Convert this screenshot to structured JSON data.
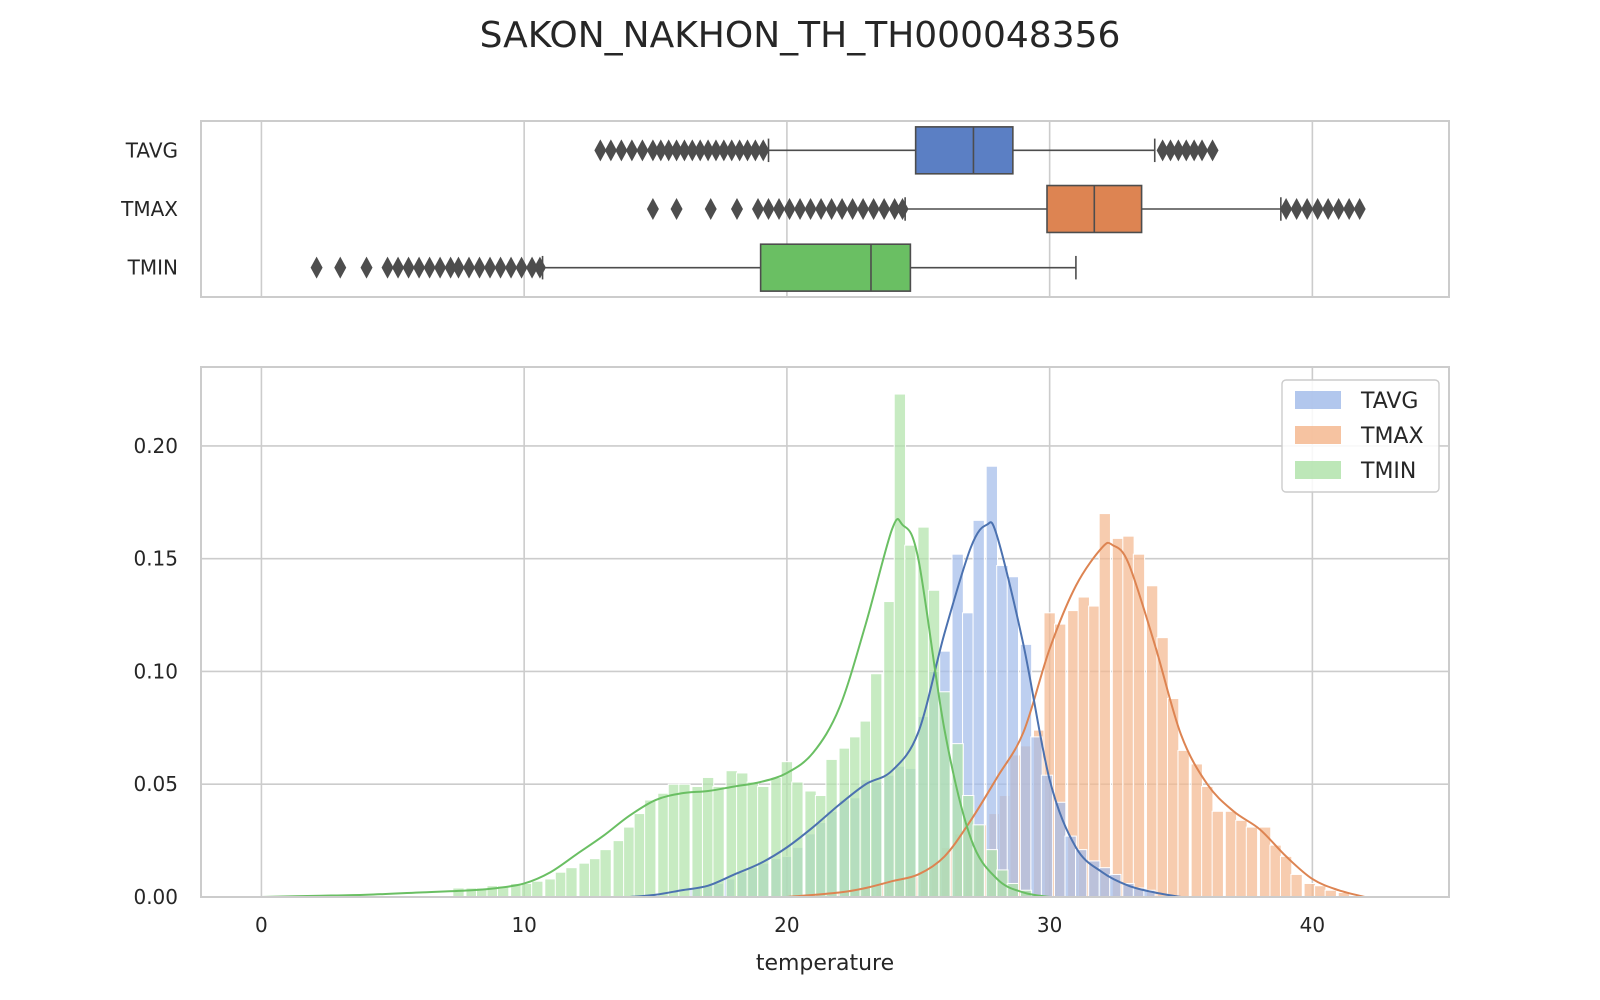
{
  "title": "SAKON_NAKHON_TH_TH000048356",
  "chart_data": [
    {
      "type": "box",
      "orientation": "horizontal",
      "categories": [
        "TAVG",
        "TMAX",
        "TMIN"
      ],
      "xlim": [
        -2.3,
        45.2
      ],
      "xticks": [
        0,
        10,
        20,
        30,
        40
      ],
      "grid": true,
      "boxes": [
        {
          "name": "TAVG",
          "color": "#5b7fc4",
          "q1": 24.9,
          "median": 27.1,
          "q3": 28.6,
          "whisker_low": 19.3,
          "whisker_high": 34.0,
          "outliers": [
            12.9,
            13.3,
            13.7,
            14.1,
            14.5,
            14.9,
            15.2,
            15.5,
            15.8,
            16.1,
            16.4,
            16.7,
            17.0,
            17.3,
            17.6,
            17.9,
            18.2,
            18.5,
            18.8,
            19.1,
            34.3,
            34.6,
            34.9,
            35.2,
            35.5,
            35.8,
            36.2
          ]
        },
        {
          "name": "TMAX",
          "color": "#dd8452",
          "q1": 29.9,
          "median": 31.7,
          "q3": 33.5,
          "whisker_low": 24.5,
          "whisker_high": 38.8,
          "outliers": [
            14.9,
            15.8,
            17.1,
            18.1,
            18.9,
            19.3,
            19.7,
            20.1,
            20.5,
            20.9,
            21.3,
            21.7,
            22.1,
            22.5,
            22.9,
            23.3,
            23.7,
            24.1,
            24.4,
            39.0,
            39.4,
            39.8,
            40.2,
            40.6,
            41.0,
            41.4,
            41.8
          ]
        },
        {
          "name": "TMIN",
          "color": "#6abf63",
          "q1": 19.0,
          "median": 23.2,
          "q3": 24.7,
          "whisker_low": 10.7,
          "whisker_high": 31.0,
          "outliers": [
            2.1,
            3.0,
            4.0,
            4.8,
            5.2,
            5.6,
            6.0,
            6.4,
            6.8,
            7.2,
            7.5,
            7.9,
            8.3,
            8.7,
            9.1,
            9.5,
            9.9,
            10.3,
            10.6
          ]
        }
      ]
    },
    {
      "type": "histogram",
      "xlabel": "temperature",
      "ylabel": "",
      "xlim": [
        -2.3,
        45.2
      ],
      "ylim": [
        0,
        0.235
      ],
      "xticks": [
        0,
        10,
        20,
        30,
        40
      ],
      "yticks": [
        0.0,
        0.05,
        0.1,
        0.15,
        0.2
      ],
      "ytick_labels": [
        "0.00",
        "0.05",
        "0.10",
        "0.15",
        "0.20"
      ],
      "grid": true,
      "legend": "top-right",
      "bin_width": 0.43,
      "series": [
        {
          "name": "TMAX",
          "color": "#f4b890",
          "line_color": "#dd8452",
          "bins": [
            [
              21.8,
              0.002
            ],
            [
              22.3,
              0.003
            ],
            [
              22.7,
              0.004
            ],
            [
              23.1,
              0.004
            ],
            [
              23.6,
              0.006
            ],
            [
              24.0,
              0.007
            ],
            [
              24.4,
              0.008
            ],
            [
              24.8,
              0.009
            ],
            [
              25.3,
              0.011
            ],
            [
              25.7,
              0.015
            ],
            [
              26.1,
              0.022
            ],
            [
              26.6,
              0.028
            ],
            [
              27.0,
              0.03
            ],
            [
              27.4,
              0.032
            ],
            [
              27.9,
              0.037
            ],
            [
              28.3,
              0.045
            ],
            [
              28.7,
              0.063
            ],
            [
              29.1,
              0.067
            ],
            [
              29.6,
              0.074
            ],
            [
              30.0,
              0.126
            ],
            [
              30.4,
              0.121
            ],
            [
              30.9,
              0.127
            ],
            [
              31.3,
              0.133
            ],
            [
              31.7,
              0.129
            ],
            [
              32.1,
              0.17
            ],
            [
              32.6,
              0.159
            ],
            [
              33.0,
              0.16
            ],
            [
              33.4,
              0.152
            ],
            [
              33.9,
              0.138
            ],
            [
              34.3,
              0.115
            ],
            [
              34.7,
              0.088
            ],
            [
              35.1,
              0.065
            ],
            [
              35.6,
              0.059
            ],
            [
              36.0,
              0.049
            ],
            [
              36.4,
              0.038
            ],
            [
              36.9,
              0.038
            ],
            [
              37.3,
              0.034
            ],
            [
              37.7,
              0.031
            ],
            [
              38.2,
              0.031
            ],
            [
              38.6,
              0.023
            ],
            [
              39.0,
              0.018
            ],
            [
              39.4,
              0.01
            ],
            [
              39.9,
              0.006
            ],
            [
              40.3,
              0.005
            ],
            [
              40.7,
              0.003
            ],
            [
              41.2,
              0.002
            ]
          ],
          "kde": [
            [
              20,
              0.0
            ],
            [
              22,
              0.002
            ],
            [
              23,
              0.004
            ],
            [
              24,
              0.007
            ],
            [
              25,
              0.01
            ],
            [
              26,
              0.018
            ],
            [
              27,
              0.034
            ],
            [
              28,
              0.053
            ],
            [
              29,
              0.073
            ],
            [
              30,
              0.11
            ],
            [
              31,
              0.138
            ],
            [
              32,
              0.155
            ],
            [
              32.4,
              0.156
            ],
            [
              33,
              0.148
            ],
            [
              34,
              0.112
            ],
            [
              35,
              0.072
            ],
            [
              36,
              0.05
            ],
            [
              37,
              0.038
            ],
            [
              38,
              0.03
            ],
            [
              39,
              0.018
            ],
            [
              40,
              0.008
            ],
            [
              41,
              0.003
            ],
            [
              42,
              0.0
            ]
          ]
        },
        {
          "name": "TAVG",
          "color": "#a4bdea",
          "line_color": "#4c72b0",
          "bins": [
            [
              16.5,
              0.004
            ],
            [
              17.0,
              0.005
            ],
            [
              17.4,
              0.006
            ],
            [
              17.8,
              0.008
            ],
            [
              18.3,
              0.011
            ],
            [
              18.7,
              0.013
            ],
            [
              19.1,
              0.015
            ],
            [
              19.6,
              0.017
            ],
            [
              20.0,
              0.018
            ],
            [
              20.4,
              0.022
            ],
            [
              20.9,
              0.028
            ],
            [
              21.3,
              0.033
            ],
            [
              21.7,
              0.038
            ],
            [
              22.2,
              0.043
            ],
            [
              22.6,
              0.044
            ],
            [
              23.0,
              0.052
            ],
            [
              23.4,
              0.051
            ],
            [
              23.9,
              0.054
            ],
            [
              24.3,
              0.058
            ],
            [
              24.7,
              0.057
            ],
            [
              25.2,
              0.08
            ],
            [
              25.6,
              0.1
            ],
            [
              26.0,
              0.109
            ],
            [
              26.5,
              0.152
            ],
            [
              26.9,
              0.126
            ],
            [
              27.3,
              0.167
            ],
            [
              27.8,
              0.191
            ],
            [
              28.2,
              0.147
            ],
            [
              28.6,
              0.142
            ],
            [
              29.1,
              0.112
            ],
            [
              29.5,
              0.071
            ],
            [
              29.9,
              0.054
            ],
            [
              30.4,
              0.042
            ],
            [
              30.8,
              0.027
            ],
            [
              31.2,
              0.021
            ],
            [
              31.7,
              0.016
            ],
            [
              32.1,
              0.013
            ],
            [
              32.5,
              0.01
            ],
            [
              33.0,
              0.006
            ],
            [
              33.4,
              0.004
            ],
            [
              33.8,
              0.003
            ]
          ],
          "kde": [
            [
              14,
              0.0
            ],
            [
              15,
              0.001
            ],
            [
              16,
              0.003
            ],
            [
              17,
              0.005
            ],
            [
              18,
              0.01
            ],
            [
              19,
              0.015
            ],
            [
              20,
              0.022
            ],
            [
              21,
              0.031
            ],
            [
              22,
              0.041
            ],
            [
              23,
              0.05
            ],
            [
              24,
              0.056
            ],
            [
              25,
              0.073
            ],
            [
              26,
              0.117
            ],
            [
              27,
              0.155
            ],
            [
              27.6,
              0.165
            ],
            [
              28,
              0.16
            ],
            [
              29,
              0.112
            ],
            [
              30,
              0.052
            ],
            [
              31,
              0.022
            ],
            [
              32,
              0.011
            ],
            [
              33,
              0.005
            ],
            [
              34,
              0.002
            ],
            [
              35,
              0.0
            ]
          ]
        },
        {
          "name": "TMIN",
          "color": "#b1e3ab",
          "line_color": "#6abf63",
          "bins": [
            [
              7.5,
              0.004
            ],
            [
              8.0,
              0.004
            ],
            [
              8.4,
              0.004
            ],
            [
              8.8,
              0.005
            ],
            [
              9.2,
              0.005
            ],
            [
              9.7,
              0.006
            ],
            [
              10.1,
              0.006
            ],
            [
              10.5,
              0.007
            ],
            [
              11.0,
              0.008
            ],
            [
              11.4,
              0.011
            ],
            [
              11.8,
              0.013
            ],
            [
              12.3,
              0.015
            ],
            [
              12.7,
              0.017
            ],
            [
              13.1,
              0.021
            ],
            [
              13.6,
              0.025
            ],
            [
              14.0,
              0.031
            ],
            [
              14.4,
              0.037
            ],
            [
              14.8,
              0.043
            ],
            [
              15.3,
              0.046
            ],
            [
              15.7,
              0.05
            ],
            [
              16.1,
              0.05
            ],
            [
              16.6,
              0.049
            ],
            [
              17.0,
              0.053
            ],
            [
              17.4,
              0.049
            ],
            [
              17.9,
              0.056
            ],
            [
              18.3,
              0.055
            ],
            [
              18.7,
              0.051
            ],
            [
              19.1,
              0.049
            ],
            [
              19.6,
              0.053
            ],
            [
              20.0,
              0.06
            ],
            [
              20.4,
              0.051
            ],
            [
              20.9,
              0.047
            ],
            [
              21.3,
              0.045
            ],
            [
              21.7,
              0.061
            ],
            [
              22.2,
              0.066
            ],
            [
              22.6,
              0.071
            ],
            [
              23.0,
              0.078
            ],
            [
              23.4,
              0.099
            ],
            [
              23.9,
              0.131
            ],
            [
              24.3,
              0.223
            ],
            [
              24.7,
              0.156
            ],
            [
              25.2,
              0.164
            ],
            [
              25.6,
              0.136
            ],
            [
              26.0,
              0.091
            ],
            [
              26.5,
              0.068
            ],
            [
              26.9,
              0.045
            ],
            [
              27.3,
              0.032
            ],
            [
              27.8,
              0.021
            ],
            [
              28.2,
              0.012
            ],
            [
              28.6,
              0.006
            ],
            [
              29.1,
              0.003
            ]
          ],
          "kde": [
            [
              0,
              0.0
            ],
            [
              2,
              0.0005
            ],
            [
              4,
              0.001
            ],
            [
              6,
              0.002
            ],
            [
              8,
              0.003
            ],
            [
              9,
              0.004
            ],
            [
              10,
              0.006
            ],
            [
              11,
              0.011
            ],
            [
              12,
              0.019
            ],
            [
              13,
              0.027
            ],
            [
              14,
              0.036
            ],
            [
              15,
              0.043
            ],
            [
              16,
              0.046
            ],
            [
              17,
              0.047
            ],
            [
              18,
              0.049
            ],
            [
              19,
              0.051
            ],
            [
              20,
              0.055
            ],
            [
              21,
              0.064
            ],
            [
              22,
              0.084
            ],
            [
              23,
              0.121
            ],
            [
              24,
              0.163
            ],
            [
              24.4,
              0.165
            ],
            [
              25,
              0.15
            ],
            [
              26,
              0.074
            ],
            [
              27,
              0.026
            ],
            [
              28,
              0.008
            ],
            [
              29,
              0.002
            ],
            [
              30,
              0.0
            ]
          ]
        }
      ]
    }
  ]
}
